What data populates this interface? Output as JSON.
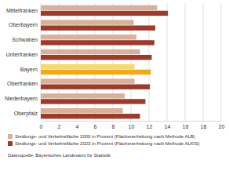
{
  "chart_data": {
    "type": "bar",
    "orientation": "horizontal",
    "categories": [
      "Mittelfranken",
      "Oberbayern",
      "Schwaben",
      "Unterfranken",
      "Bayern",
      "Oberfranken",
      "Niederbayern",
      "Oberpfalz"
    ],
    "series": [
      {
        "name": "Siedlungs- und Verkehrsfläche 2000 in Prozent (Flächenerhebung nach Methode ALB)",
        "color": "#d8b19a",
        "colors": [
          "#d8b19a",
          "#d8b19a",
          "#d8b19a",
          "#d8b19a",
          "#f7d774",
          "#d8b19a",
          "#d8b19a",
          "#d8b19a"
        ],
        "values": [
          12.9,
          10.3,
          10.6,
          11.0,
          10.4,
          10.4,
          9.3,
          9.1
        ]
      },
      {
        "name": "Siedlungs- und Verkehrsfläche 2023 in Prozent (Flächenerhebung nach Methode ALKIS)",
        "color": "#9c3b2c",
        "colors": [
          "#9c3b2c",
          "#9c3b2c",
          "#9c3b2c",
          "#9c3b2c",
          "#f0a81c",
          "#9c3b2c",
          "#9c3b2c",
          "#9c3b2c"
        ],
        "values": [
          14.1,
          12.7,
          12.6,
          12.3,
          12.2,
          12.1,
          11.6,
          11.0
        ]
      }
    ],
    "xlim": [
      0,
      20
    ],
    "xticks": [
      0,
      2,
      4,
      6,
      8,
      10,
      12,
      14,
      16,
      18,
      20
    ],
    "grid": true,
    "legend": "bottom",
    "annotations": [
      "Datenquelle: Bayerisches Landesamt für Statistik"
    ]
  }
}
